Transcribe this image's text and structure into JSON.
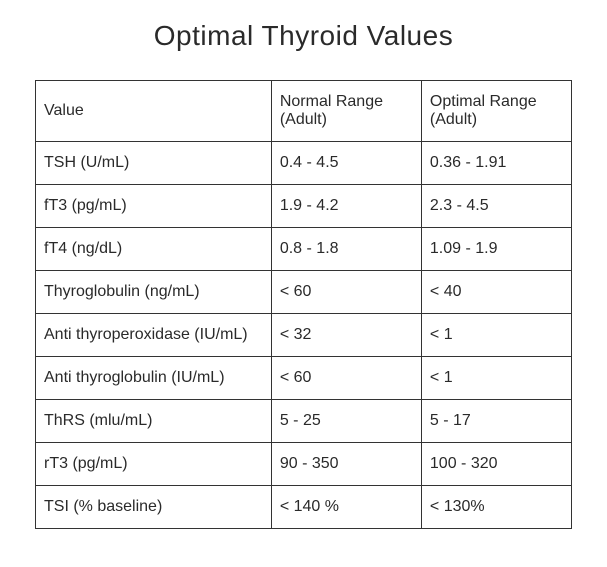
{
  "title": "Optimal Thyroid Values",
  "table": {
    "columns": [
      {
        "label": "Value"
      },
      {
        "label": "Normal Range (Adult)"
      },
      {
        "label": "Optimal Range (Adult)"
      }
    ],
    "rows": [
      {
        "value": "TSH (U/mL)",
        "normal": "0.4 - 4.5",
        "optimal": "0.36 - 1.91"
      },
      {
        "value": "fT3 (pg/mL)",
        "normal": "1.9 - 4.2",
        "optimal": "2.3 - 4.5"
      },
      {
        "value": "fT4 (ng/dL)",
        "normal": "0.8 - 1.8",
        "optimal": "1.09 - 1.9"
      },
      {
        "value": "Thyroglobulin (ng/mL)",
        "normal": "< 60",
        "optimal": "< 40"
      },
      {
        "value": "Anti thyroperoxidase (IU/mL)",
        "normal": "< 32",
        "optimal": "< 1"
      },
      {
        "value": "Anti thyroglobulin (IU/mL)",
        "normal": "< 60",
        "optimal": "< 1"
      },
      {
        "value": "ThRS (mlu/mL)",
        "normal": "5 - 25",
        "optimal": "5 - 17"
      },
      {
        "value": "rT3 (pg/mL)",
        "normal": "90 - 350",
        "optimal": "100 - 320"
      },
      {
        "value": "TSI (% baseline)",
        "normal": "< 140 %",
        "optimal": "< 130%"
      }
    ],
    "border_color": "#333333",
    "text_color": "#2a2a2a",
    "background_color": "#ffffff",
    "title_fontsize": 28,
    "cell_fontsize": 16,
    "column_widths_pct": [
      44,
      28,
      28
    ]
  }
}
